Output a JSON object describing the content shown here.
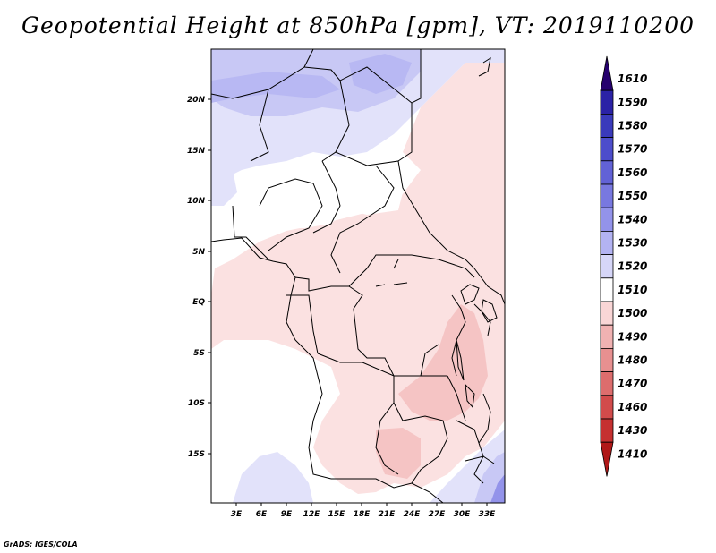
{
  "title": "Geopotential Height at 850hPa [gpm], VT: 2019110200",
  "credit": "GrADS: IGES/COLA",
  "lat_labels": [
    "20N",
    "15N",
    "10N",
    "5N",
    "EQ",
    "5S",
    "10S",
    "15S"
  ],
  "lon_labels": [
    "3E",
    "6E",
    "9E",
    "12E",
    "15E",
    "18E",
    "21E",
    "24E",
    "27E",
    "30E",
    "33E"
  ],
  "colorbar": {
    "levels": [
      "1610",
      "1590",
      "1580",
      "1570",
      "1560",
      "1550",
      "1540",
      "1530",
      "1520",
      "1510",
      "1500",
      "1490",
      "1480",
      "1470",
      "1460",
      "1430",
      "1410"
    ],
    "colors": [
      "#26006e",
      "#2b22a6",
      "#3a3abb",
      "#4d4dcb",
      "#6262d6",
      "#7878e0",
      "#9393ea",
      "#b3b3f2",
      "#d6d6f8",
      "#ffffff",
      "#f9d6d6",
      "#f1b2b2",
      "#e79090",
      "#dd6d6d",
      "#d24b4b",
      "#c53030",
      "#b01818"
    ]
  },
  "chart_data": {
    "type": "heatmap",
    "title": "Geopotential Height at 850hPa [gpm], VT: 2019110200",
    "variable": "Geopotential Height at 850hPa",
    "units": "gpm",
    "valid_time": "2019110200",
    "lon_range": [
      "0E",
      "35E"
    ],
    "lat_range": [
      "20S",
      "24N"
    ],
    "levels": [
      1410,
      1430,
      1460,
      1470,
      1480,
      1490,
      1500,
      1510,
      1520,
      1530,
      1540,
      1550,
      1560,
      1570,
      1580,
      1590,
      1610
    ]
  }
}
